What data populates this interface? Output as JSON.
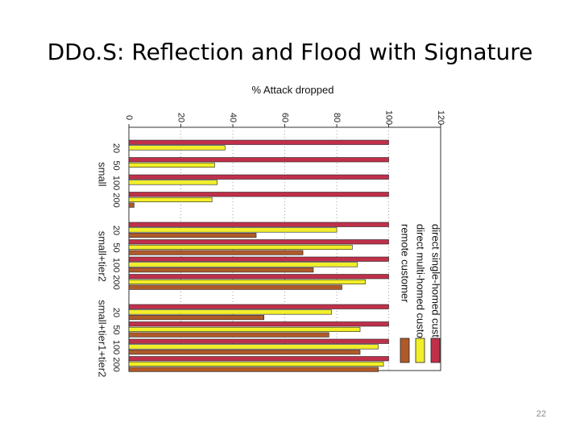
{
  "slide": {
    "title": "DDo.S: Reflection and Flood with Signature",
    "number": "22"
  },
  "chart_data": {
    "type": "bar",
    "orientation": "horizontal",
    "title": "",
    "xlabel": "% Attack dropped",
    "xlim": [
      0,
      120
    ],
    "xticks": [
      "0",
      "20",
      "40",
      "60",
      "80",
      "100",
      "120"
    ],
    "grid": true,
    "legend_position": "right",
    "groups": [
      {
        "label": "small",
        "categories": [
          "20",
          "50",
          "100",
          "200"
        ]
      },
      {
        "label": "small+tier2",
        "categories": [
          "20",
          "50",
          "100",
          "200"
        ]
      },
      {
        "label": "small+tier1+tier2",
        "categories": [
          "20",
          "50",
          "100",
          "200"
        ]
      }
    ],
    "series": [
      {
        "name": "direct single-homed customer",
        "color": "#c0304a",
        "values": [
          100,
          100,
          100,
          100,
          100,
          100,
          100,
          100,
          100,
          100,
          100,
          100
        ]
      },
      {
        "name": "direct multi-homed customer",
        "color": "#f2ee2a",
        "values": [
          37,
          33,
          34,
          32,
          80,
          86,
          88,
          91,
          78,
          89,
          96,
          98
        ]
      },
      {
        "name": "remote customer",
        "color": "#b05a2a",
        "values": [
          0,
          0,
          0,
          2,
          49,
          67,
          71,
          82,
          52,
          77,
          89,
          96
        ]
      }
    ]
  }
}
